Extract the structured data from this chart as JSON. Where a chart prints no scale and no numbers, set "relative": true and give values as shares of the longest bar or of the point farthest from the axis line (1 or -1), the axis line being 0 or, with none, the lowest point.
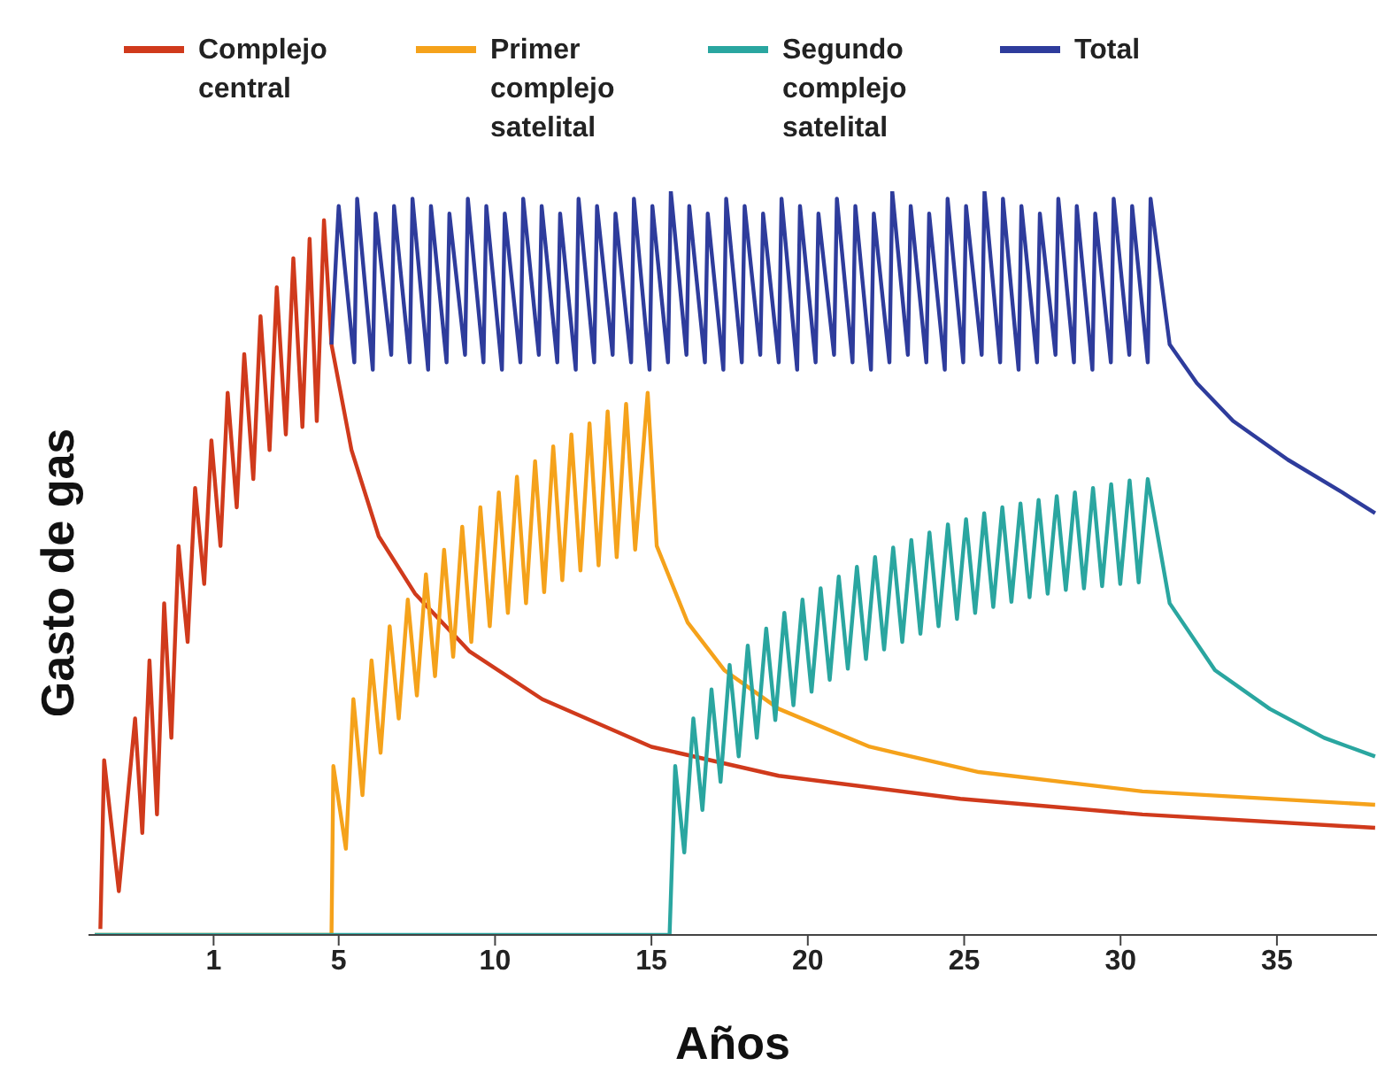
{
  "chart_data": {
    "type": "line",
    "relative": true,
    "xlabel": "Años",
    "ylabel": "Gasto de gas",
    "legend": "top",
    "xlim": [
      -3,
      38.2
    ],
    "xticks": [
      1,
      5,
      10,
      15,
      20,
      25,
      30,
      35
    ],
    "series": [
      {
        "name": "Complejo central",
        "color": "#d03a1c",
        "x": [
          -2.62,
          -2.5,
          -2.03,
          -1.51,
          -1.28,
          -1.05,
          -0.81,
          -0.58,
          -0.35,
          -0.12,
          0.17,
          0.41,
          0.7,
          0.93,
          1.22,
          1.45,
          1.74,
          1.98,
          2.27,
          2.5,
          2.79,
          3.02,
          3.31,
          3.55,
          3.84,
          4.07,
          4.3,
          4.53,
          4.77,
          5.41,
          6.28,
          7.44,
          9.19,
          11.51,
          15.0,
          19.07,
          24.88,
          30.7,
          38.14
        ],
        "values": [
          0.008,
          0.235,
          0.059,
          0.291,
          0.137,
          0.369,
          0.162,
          0.446,
          0.265,
          0.523,
          0.394,
          0.601,
          0.472,
          0.665,
          0.523,
          0.729,
          0.575,
          0.781,
          0.613,
          0.832,
          0.652,
          0.871,
          0.673,
          0.91,
          0.683,
          0.936,
          0.691,
          0.961,
          0.794,
          0.652,
          0.536,
          0.459,
          0.381,
          0.317,
          0.253,
          0.214,
          0.183,
          0.162,
          0.144
        ]
      },
      {
        "name": "Primer complejo satelital",
        "color": "#f5a21b",
        "x": [
          -2.8,
          4.77,
          4.83,
          5.23,
          5.47,
          5.76,
          6.05,
          6.34,
          6.63,
          6.92,
          7.21,
          7.5,
          7.79,
          8.08,
          8.37,
          8.66,
          8.95,
          9.24,
          9.53,
          9.83,
          10.12,
          10.41,
          10.7,
          10.99,
          11.28,
          11.57,
          11.86,
          12.15,
          12.44,
          12.73,
          13.02,
          13.31,
          13.6,
          13.89,
          14.19,
          14.48,
          14.88,
          15.17,
          16.16,
          17.33,
          19.07,
          21.98,
          25.47,
          30.7,
          38.14
        ],
        "values": [
          0,
          0,
          0.227,
          0.116,
          0.317,
          0.188,
          0.369,
          0.245,
          0.415,
          0.291,
          0.451,
          0.322,
          0.485,
          0.348,
          0.518,
          0.374,
          0.549,
          0.394,
          0.575,
          0.415,
          0.595,
          0.433,
          0.616,
          0.446,
          0.637,
          0.461,
          0.657,
          0.477,
          0.673,
          0.49,
          0.688,
          0.497,
          0.704,
          0.508,
          0.714,
          0.518,
          0.729,
          0.523,
          0.42,
          0.356,
          0.304,
          0.253,
          0.219,
          0.193,
          0.175
        ]
      },
      {
        "name": "Segundo complejo satelital",
        "color": "#2aa6a0",
        "x": [
          -2.8,
          15.58,
          15.76,
          16.05,
          16.34,
          16.63,
          16.92,
          17.21,
          17.5,
          17.79,
          18.08,
          18.37,
          18.67,
          18.96,
          19.25,
          19.54,
          19.83,
          20.12,
          20.41,
          20.7,
          20.99,
          21.28,
          21.57,
          21.86,
          22.15,
          22.44,
          22.73,
          23.02,
          23.31,
          23.6,
          23.89,
          24.18,
          24.48,
          24.77,
          25.06,
          25.35,
          25.64,
          25.93,
          26.22,
          26.51,
          26.8,
          27.09,
          27.38,
          27.67,
          27.96,
          28.25,
          28.54,
          28.83,
          29.12,
          29.41,
          29.7,
          29.99,
          30.29,
          30.58,
          30.87,
          31.57,
          33.02,
          34.77,
          36.51,
          38.14
        ],
        "values": [
          0,
          0,
          0.227,
          0.111,
          0.291,
          0.168,
          0.33,
          0.206,
          0.363,
          0.24,
          0.389,
          0.265,
          0.412,
          0.289,
          0.433,
          0.309,
          0.451,
          0.327,
          0.466,
          0.343,
          0.482,
          0.358,
          0.495,
          0.371,
          0.508,
          0.384,
          0.521,
          0.394,
          0.531,
          0.405,
          0.541,
          0.415,
          0.552,
          0.425,
          0.559,
          0.433,
          0.567,
          0.441,
          0.575,
          0.448,
          0.58,
          0.454,
          0.585,
          0.459,
          0.59,
          0.464,
          0.595,
          0.466,
          0.601,
          0.469,
          0.606,
          0.472,
          0.611,
          0.474,
          0.613,
          0.446,
          0.356,
          0.304,
          0.265,
          0.24
        ]
      },
      {
        "name": "Total",
        "color": "#2e3c9c",
        "x": [
          4.77,
          5.0,
          5.5,
          5.59,
          6.09,
          6.18,
          6.68,
          6.77,
          7.27,
          7.36,
          7.86,
          7.95,
          8.45,
          8.54,
          9.04,
          9.13,
          9.63,
          9.72,
          10.22,
          10.31,
          10.81,
          10.9,
          11.4,
          11.49,
          11.99,
          12.08,
          12.58,
          12.67,
          13.17,
          13.26,
          13.76,
          13.85,
          14.35,
          14.44,
          14.94,
          15.03,
          15.53,
          15.62,
          16.12,
          16.21,
          16.71,
          16.8,
          17.3,
          17.39,
          17.89,
          17.98,
          18.48,
          18.57,
          19.07,
          19.16,
          19.66,
          19.75,
          20.25,
          20.34,
          20.84,
          20.93,
          21.43,
          21.52,
          22.02,
          22.11,
          22.61,
          22.7,
          23.2,
          23.29,
          23.79,
          23.88,
          24.38,
          24.47,
          24.97,
          25.06,
          25.56,
          25.65,
          26.15,
          26.24,
          26.74,
          26.83,
          27.33,
          27.42,
          27.92,
          28.01,
          28.51,
          28.6,
          29.1,
          29.19,
          29.69,
          29.78,
          30.28,
          30.37,
          30.87,
          30.96,
          31.57,
          32.44,
          33.6,
          35.35,
          37.09,
          38.14
        ],
        "values": [
          0.794,
          0.98,
          0.77,
          0.99,
          0.76,
          0.97,
          0.78,
          0.98,
          0.77,
          0.99,
          0.76,
          0.98,
          0.77,
          0.97,
          0.78,
          0.99,
          0.77,
          0.98,
          0.76,
          0.97,
          0.77,
          0.99,
          0.78,
          0.98,
          0.77,
          0.97,
          0.76,
          0.99,
          0.77,
          0.98,
          0.78,
          0.97,
          0.77,
          0.99,
          0.76,
          0.98,
          0.77,
          1.0,
          0.78,
          0.98,
          0.77,
          0.97,
          0.76,
          0.99,
          0.77,
          0.98,
          0.78,
          0.97,
          0.77,
          0.99,
          0.76,
          0.98,
          0.77,
          0.97,
          0.78,
          0.99,
          0.77,
          0.98,
          0.76,
          0.97,
          0.77,
          1.0,
          0.78,
          0.98,
          0.77,
          0.97,
          0.76,
          0.99,
          0.77,
          0.98,
          0.78,
          1.0,
          0.77,
          0.99,
          0.76,
          0.98,
          0.77,
          0.97,
          0.78,
          0.99,
          0.77,
          0.98,
          0.76,
          0.97,
          0.77,
          0.99,
          0.78,
          0.98,
          0.77,
          0.99,
          0.794,
          0.742,
          0.691,
          0.639,
          0.595,
          0.567
        ]
      }
    ]
  }
}
